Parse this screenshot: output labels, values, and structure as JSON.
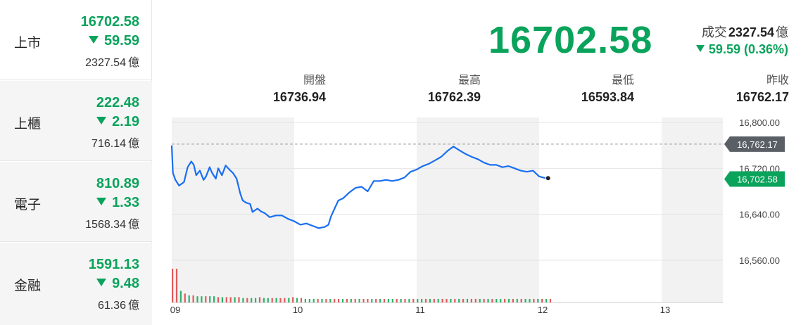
{
  "sidebar": {
    "items": [
      {
        "name": "上市",
        "price": "16702.58",
        "change": "59.59",
        "volume": "2327.54",
        "unit": "億"
      },
      {
        "name": "上櫃",
        "price": "222.48",
        "change": "2.19",
        "volume": "716.14",
        "unit": "億"
      },
      {
        "name": "電子",
        "price": "810.89",
        "change": "1.33",
        "volume": "1568.34",
        "unit": "億"
      },
      {
        "name": "金融",
        "price": "1591.13",
        "change": "9.48",
        "volume": "61.36",
        "unit": "億"
      }
    ]
  },
  "header": {
    "price": "16702.58",
    "trade_label": "成交",
    "trade_value": "2327.54",
    "trade_unit": "億",
    "change": "59.59 (0.36%)"
  },
  "stats": [
    {
      "label": "開盤",
      "value": "16736.94"
    },
    {
      "label": "最高",
      "value": "16762.39"
    },
    {
      "label": "最低",
      "value": "16593.84"
    },
    {
      "label": "昨收",
      "value": "16762.17"
    }
  ],
  "colors": {
    "down": "#0aa35b",
    "line": "#1a6ef2",
    "up_volume": "#e05a5a",
    "down_volume": "#2bb26a",
    "shade": "#f2f2f2",
    "prev_close_tag": "#5a5f66"
  },
  "chart_data": {
    "type": "line",
    "x_ticks": [
      "09",
      "10",
      "11",
      "12",
      "13"
    ],
    "y_ticks": [
      "16,800.00",
      "16,720.00",
      "16,640.00",
      "16,560.00"
    ],
    "ylim": [
      16560,
      16800
    ],
    "prev_close": 16762.17,
    "prev_close_label": "16,762.17",
    "last": 16702.58,
    "last_label": "16,702.58",
    "grid": true,
    "x_hours": [
      9.0,
      9.01,
      9.03,
      9.06,
      9.1,
      9.13,
      9.16,
      9.18,
      9.2,
      9.23,
      9.26,
      9.28,
      9.31,
      9.33,
      9.36,
      9.38,
      9.41,
      9.44,
      9.47,
      9.5,
      9.53,
      9.56,
      9.58,
      9.61,
      9.64,
      9.66,
      9.7,
      9.73,
      9.76,
      9.8,
      9.85,
      9.9,
      9.95,
      10.0,
      10.05,
      10.1,
      10.15,
      10.2,
      10.25,
      10.28,
      10.3,
      10.33,
      10.36,
      10.4,
      10.45,
      10.5,
      10.55,
      10.6,
      10.65,
      10.7,
      10.75,
      10.8,
      10.85,
      10.9,
      10.95,
      11.0,
      11.05,
      11.1,
      11.15,
      11.2,
      11.25,
      11.3,
      11.33,
      11.36,
      11.4,
      11.45,
      11.5,
      11.55,
      11.6,
      11.65,
      11.7,
      11.75,
      11.8,
      11.85,
      11.9,
      11.95,
      12.0,
      12.05
    ],
    "y": [
      16760,
      16712,
      16700,
      16690,
      16696,
      16722,
      16732,
      16726,
      16708,
      16716,
      16700,
      16706,
      16722,
      16712,
      16702,
      16720,
      16708,
      16725,
      16718,
      16712,
      16702,
      16676,
      16664,
      16660,
      16658,
      16644,
      16650,
      16645,
      16642,
      16635,
      16638,
      16638,
      16632,
      16628,
      16622,
      16624,
      16620,
      16616,
      16618,
      16622,
      16636,
      16650,
      16664,
      16668,
      16678,
      16686,
      16688,
      16680,
      16698,
      16698,
      16700,
      16698,
      16700,
      16704,
      16714,
      16718,
      16724,
      16728,
      16734,
      16740,
      16750,
      16758,
      16754,
      16750,
      16745,
      16740,
      16736,
      16730,
      16726,
      16726,
      16722,
      16724,
      16720,
      16716,
      16714,
      16716,
      16706,
      16703
    ],
    "volume": [
      38,
      13,
      10,
      8,
      8,
      7,
      7,
      7,
      7,
      6,
      6,
      6,
      6,
      6,
      5,
      5,
      5,
      6,
      5,
      5,
      5,
      5,
      5,
      5,
      6,
      5,
      5,
      4,
      4,
      4,
      4,
      4,
      4,
      4,
      4,
      4,
      4,
      4,
      4,
      4,
      4,
      4,
      4,
      4,
      4,
      4,
      4,
      4,
      4,
      4,
      4,
      4,
      4,
      4,
      4,
      4,
      4,
      4,
      4,
      4,
      4,
      4,
      4,
      4,
      4,
      4,
      4,
      4,
      4,
      4,
      4,
      4,
      4,
      4,
      4,
      4,
      4,
      4
    ],
    "volume_up": [
      true,
      false,
      true,
      false,
      true,
      false,
      true,
      false,
      false,
      true,
      false,
      true,
      false,
      true,
      false,
      true,
      false,
      true,
      false,
      false,
      true,
      false,
      true,
      false,
      true,
      false,
      true,
      false,
      false,
      true,
      false,
      true,
      false,
      true,
      false,
      true,
      false,
      true,
      false,
      true,
      false,
      true,
      false,
      true,
      false,
      true,
      false,
      true,
      false,
      true,
      false,
      true,
      false,
      true,
      false,
      true,
      false,
      true,
      false,
      true,
      false,
      true,
      false,
      true,
      false,
      true,
      false,
      true,
      false,
      true,
      false,
      true,
      false,
      true,
      false,
      true,
      false,
      true
    ]
  }
}
